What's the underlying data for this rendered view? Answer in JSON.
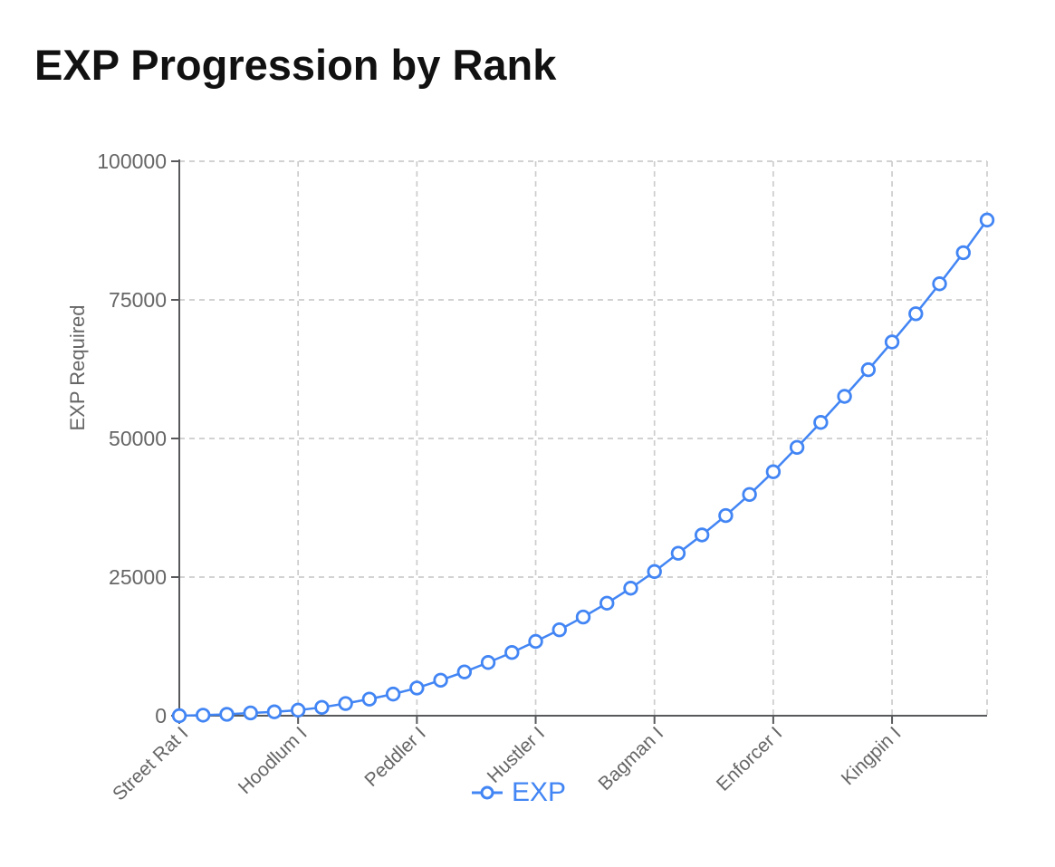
{
  "title": "EXP Progression by Rank",
  "colors": {
    "accent_blue": "#4285f4",
    "axis_line": "#58595b",
    "grid_line": "#cccccc",
    "tick_text": "#666666",
    "title_text": "#111111",
    "marker_fill": "#ffffff",
    "background": "#ffffff"
  },
  "chart_data": {
    "type": "line",
    "title": "EXP Progression by Rank",
    "xlabel": "",
    "ylabel": "EXP Required",
    "series_name": "EXP",
    "legend": {
      "label": "EXP",
      "position": "bottom-center"
    },
    "grid": {
      "style": "dashed",
      "shown": true
    },
    "marker": {
      "shape": "open-circle"
    },
    "ylim": [
      0,
      100000
    ],
    "yticks": [
      0,
      25000,
      50000,
      75000,
      100000
    ],
    "ytick_labels": [
      "0",
      "25000",
      "50000",
      "75000",
      "100000"
    ],
    "x": [
      1,
      2,
      3,
      4,
      5,
      6,
      7,
      8,
      9,
      10,
      11,
      12,
      13,
      14,
      15,
      16,
      17,
      18,
      19,
      20,
      21,
      22,
      23,
      24,
      25,
      26,
      27,
      28,
      29,
      30,
      31,
      32,
      33,
      34,
      35
    ],
    "xticks": [
      {
        "index": 1,
        "label": "Street Rat I"
      },
      {
        "index": 6,
        "label": "Hoodlum I"
      },
      {
        "index": 11,
        "label": "Peddler I"
      },
      {
        "index": 16,
        "label": "Hustler I"
      },
      {
        "index": 21,
        "label": "Bagman I"
      },
      {
        "index": 26,
        "label": "Enforcer I"
      },
      {
        "index": 31,
        "label": "Kingpin I"
      }
    ],
    "values": [
      0,
      100,
      250,
      500,
      700,
      1000,
      1500,
      2200,
      3000,
      3900,
      5000,
      6400,
      7900,
      9600,
      11400,
      13400,
      15500,
      17800,
      20300,
      23000,
      26000,
      29300,
      32600,
      36100,
      39900,
      44000,
      48400,
      52900,
      57600,
      62400,
      67400,
      72500,
      77900,
      83500,
      89400
    ]
  }
}
